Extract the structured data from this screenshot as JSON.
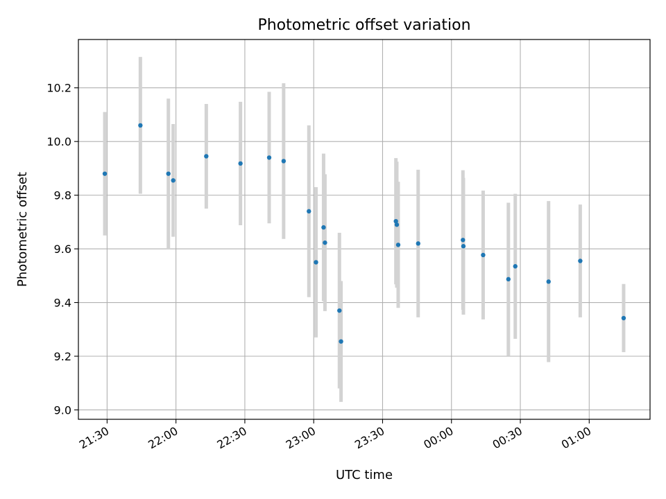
{
  "chart_data": {
    "type": "scatter",
    "title": "Photometric offset variation",
    "xlabel": "UTC time",
    "ylabel": "Photometric offset",
    "grid": true,
    "x_ticks": [
      {
        "t": -150,
        "label": "21:30"
      },
      {
        "t": -120,
        "label": "22:00"
      },
      {
        "t": -90,
        "label": "22:30"
      },
      {
        "t": -60,
        "label": "23:00"
      },
      {
        "t": -30,
        "label": "23:30"
      },
      {
        "t": 0,
        "label": "00:00"
      },
      {
        "t": 30,
        "label": "00:30"
      },
      {
        "t": 60,
        "label": "01:00"
      }
    ],
    "y_ticks": [
      9.0,
      9.2,
      9.4,
      9.6,
      9.8,
      10.0,
      10.2
    ],
    "xlim": [
      -162.5,
      86.5
    ],
    "ylim": [
      8.965,
      10.38
    ],
    "point_color": "#1f77b4",
    "errorbar_color": "#d3d3d3",
    "points": [
      {
        "t": -151.0,
        "y": 9.88,
        "err": 0.23
      },
      {
        "t": -135.5,
        "y": 10.06,
        "err": 0.255
      },
      {
        "t": -123.3,
        "y": 9.88,
        "err": 0.28
      },
      {
        "t": -121.2,
        "y": 9.855,
        "err": 0.21
      },
      {
        "t": -106.8,
        "y": 9.945,
        "err": 0.195
      },
      {
        "t": -91.9,
        "y": 9.918,
        "err": 0.23
      },
      {
        "t": -79.4,
        "y": 9.94,
        "err": 0.245
      },
      {
        "t": -73.1,
        "y": 9.927,
        "err": 0.29
      },
      {
        "t": -62.1,
        "y": 9.74,
        "err": 0.32
      },
      {
        "t": -59.0,
        "y": 9.55,
        "err": 0.28
      },
      {
        "t": -55.7,
        "y": 9.68,
        "err": 0.275
      },
      {
        "t": -55.1,
        "y": 9.623,
        "err": 0.255
      },
      {
        "t": -48.8,
        "y": 9.37,
        "err": 0.29
      },
      {
        "t": -48.1,
        "y": 9.255,
        "err": 0.225
      },
      {
        "t": -24.2,
        "y": 9.703,
        "err": 0.235
      },
      {
        "t": -23.8,
        "y": 9.69,
        "err": 0.235
      },
      {
        "t": -23.2,
        "y": 9.615,
        "err": 0.235
      },
      {
        "t": -14.5,
        "y": 9.62,
        "err": 0.275
      },
      {
        "t": 5.0,
        "y": 9.633,
        "err": 0.26
      },
      {
        "t": 5.2,
        "y": 9.61,
        "err": 0.255
      },
      {
        "t": 13.8,
        "y": 9.577,
        "err": 0.24
      },
      {
        "t": 24.8,
        "y": 9.487,
        "err": 0.285
      },
      {
        "t": 27.8,
        "y": 9.535,
        "err": 0.27
      },
      {
        "t": 42.3,
        "y": 9.478,
        "err": 0.3
      },
      {
        "t": 56.1,
        "y": 9.555,
        "err": 0.21
      },
      {
        "t": 75.0,
        "y": 9.342,
        "err": 0.127
      }
    ]
  }
}
